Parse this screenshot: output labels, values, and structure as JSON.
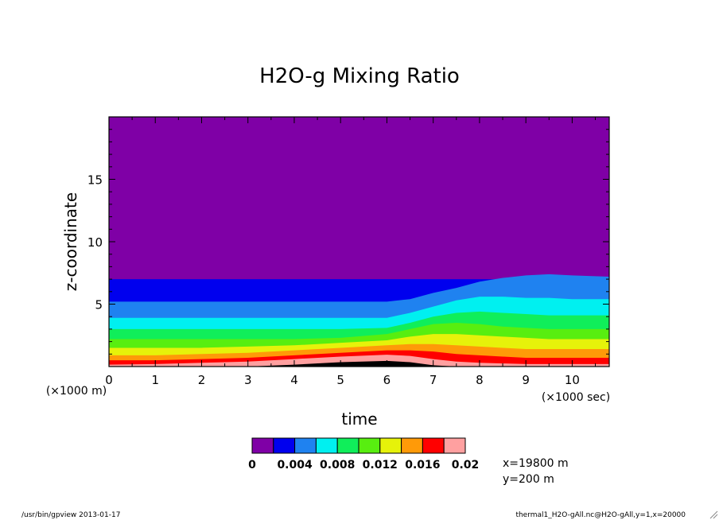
{
  "chart_data": {
    "type": "contour",
    "title": "H2O-g Mixing Ratio",
    "xlabel": "time",
    "ylabel": "z-coordinate",
    "x_unit_label": "(×1000 sec)",
    "y_unit_label": "(×1000 m)",
    "xlim": [
      0,
      10.8
    ],
    "ylim": [
      0,
      20
    ],
    "xticks": [
      "0",
      "1",
      "2",
      "3",
      "4",
      "5",
      "6",
      "7",
      "8",
      "9",
      "10"
    ],
    "yticks": [
      "5",
      "10",
      "15"
    ],
    "levels": [
      0,
      0.002,
      0.004,
      0.006,
      0.008,
      0.01,
      0.012,
      0.014,
      0.016,
      0.018,
      0.02
    ],
    "colorbar_labels": [
      "0",
      "0.004",
      "0.008",
      "0.012",
      "0.016",
      "0.02"
    ],
    "colors": [
      "#7f00a6",
      "#0000ee",
      "#1f82f0",
      "#00f0f0",
      "#10ee5a",
      "#58ee10",
      "#e6f20a",
      "#ff9a08",
      "#ff0000",
      "#ffa0a0"
    ],
    "time_samples": [
      0,
      1,
      2,
      3,
      4,
      5,
      6,
      6.5,
      7,
      7.5,
      8,
      8.5,
      9,
      9.5,
      10,
      10.8
    ],
    "contour_heights": [
      [
        7.0,
        7.0,
        7.0,
        7.0,
        7.0,
        7.0,
        7.0,
        7.0,
        7.0,
        7.0,
        7.0,
        7.0,
        7.0,
        7.0,
        7.0,
        7.0
      ],
      [
        5.2,
        5.2,
        5.2,
        5.2,
        5.2,
        5.2,
        5.2,
        5.4,
        5.9,
        6.3,
        6.8,
        7.1,
        7.3,
        7.4,
        7.3,
        7.2
      ],
      [
        3.9,
        3.9,
        3.9,
        3.9,
        3.9,
        3.9,
        3.9,
        4.3,
        4.8,
        5.3,
        5.6,
        5.6,
        5.5,
        5.5,
        5.4,
        5.4
      ],
      [
        3.0,
        3.0,
        3.0,
        3.0,
        3.0,
        3.0,
        3.1,
        3.5,
        4.0,
        4.3,
        4.4,
        4.3,
        4.2,
        4.1,
        4.1,
        4.1
      ],
      [
        2.2,
        2.2,
        2.2,
        2.2,
        2.2,
        2.3,
        2.6,
        3.0,
        3.4,
        3.5,
        3.4,
        3.2,
        3.1,
        3.0,
        3.0,
        3.0
      ],
      [
        1.5,
        1.5,
        1.5,
        1.6,
        1.7,
        1.9,
        2.1,
        2.4,
        2.6,
        2.6,
        2.5,
        2.4,
        2.3,
        2.2,
        2.2,
        2.2
      ],
      [
        0.9,
        0.9,
        1.0,
        1.1,
        1.3,
        1.5,
        1.7,
        1.8,
        1.8,
        1.7,
        1.6,
        1.5,
        1.4,
        1.4,
        1.4,
        1.4
      ],
      [
        0.5,
        0.5,
        0.6,
        0.7,
        0.9,
        1.1,
        1.3,
        1.3,
        1.2,
        1.0,
        0.9,
        0.8,
        0.7,
        0.7,
        0.7,
        0.7
      ],
      [
        0.15,
        0.2,
        0.3,
        0.4,
        0.6,
        0.8,
        0.95,
        0.85,
        0.6,
        0.4,
        0.3,
        0.25,
        0.2,
        0.2,
        0.2,
        0.2
      ],
      [
        0.0,
        0.0,
        0.0,
        0.0,
        0.15,
        0.35,
        0.45,
        0.35,
        0.1,
        0.0,
        0.0,
        0.0,
        0.0,
        0.0,
        0.0,
        0.0
      ]
    ],
    "info_lines": [
      "x=19800 m",
      "y=200 m"
    ],
    "footer_left": "/usr/bin/gpview  2013-01-17",
    "footer_right": "thermal1_H2O-gAll.nc@H2O-gAll,y=1,x=20000"
  }
}
